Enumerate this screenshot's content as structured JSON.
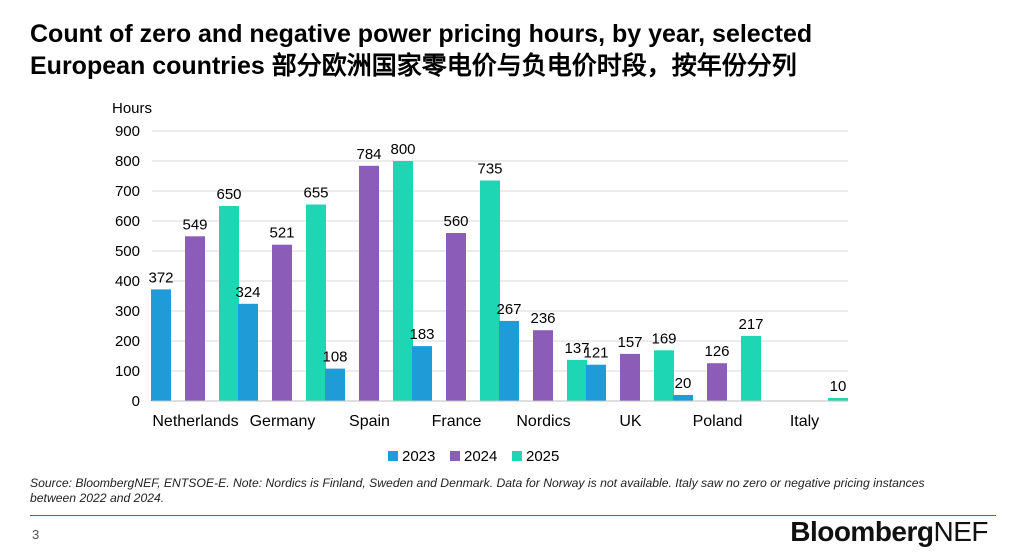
{
  "title": {
    "line1": "Count of zero and negative power pricing hours, by year, selected",
    "line2": "European countries 部分欧洲国家零电价与负电价时段，按年份分列"
  },
  "chart_data": {
    "type": "bar",
    "ylabel": "Hours",
    "xlabel": "",
    "ylim": [
      0,
      900
    ],
    "yticks": [
      0,
      100,
      200,
      300,
      400,
      500,
      600,
      700,
      800,
      900
    ],
    "grid": true,
    "legend_position": "bottom",
    "categories": [
      "Netherlands",
      "Germany",
      "Spain",
      "France",
      "Nordics",
      "UK",
      "Poland",
      "Italy"
    ],
    "series": [
      {
        "name": "2023",
        "color": "#1f9bd7",
        "values": [
          372,
          324,
          108,
          183,
          267,
          121,
          20,
          null
        ]
      },
      {
        "name": "2024",
        "color": "#8b5cb8",
        "values": [
          549,
          521,
          784,
          560,
          236,
          157,
          126,
          null
        ]
      },
      {
        "name": "2025",
        "color": "#1fd6b4",
        "values": [
          650,
          655,
          800,
          735,
          137,
          169,
          217,
          10
        ]
      }
    ]
  },
  "source_note": "Source: BloombergNEF, ENTSOE-E. Note: Nordics is Finland, Sweden and Denmark. Data for Norway is not available. Italy saw no zero or negative pricing instances between 2022 and 2024.",
  "footer": {
    "page_number": "3",
    "logo_part1": "Bloomberg",
    "logo_part2": "NEF"
  }
}
